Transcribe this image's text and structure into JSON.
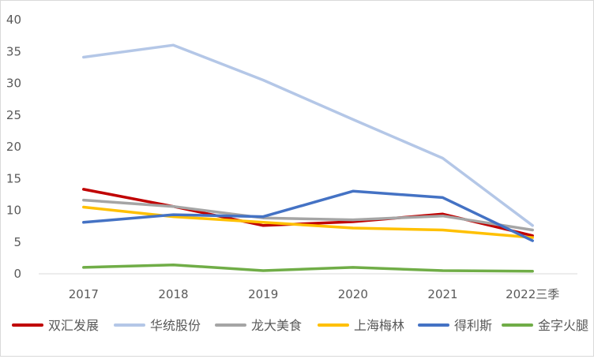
{
  "chart_data": {
    "type": "line",
    "title": "",
    "xlabel": "",
    "ylabel": "",
    "categories": [
      "2017",
      "2018",
      "2019",
      "2020",
      "2021",
      "2022三季"
    ],
    "ylim": [
      0,
      40
    ],
    "yticks": [
      "0",
      "5",
      "10",
      "15",
      "20",
      "25",
      "30",
      "35",
      "40"
    ],
    "grid": false,
    "legend_position": "bottom",
    "series": [
      {
        "name": "双汇发展",
        "color": "#c00000",
        "values": [
          13.3,
          10.6,
          7.6,
          8.2,
          9.4,
          6.0
        ]
      },
      {
        "name": "华统股份",
        "color": "#b4c7e7",
        "values": [
          34.1,
          36.0,
          30.5,
          24.3,
          18.2,
          7.6
        ]
      },
      {
        "name": "龙大美食",
        "color": "#a5a5a5",
        "values": [
          11.6,
          10.6,
          8.8,
          8.5,
          9.1,
          6.9
        ]
      },
      {
        "name": "上海梅林",
        "color": "#ffc000",
        "values": [
          10.5,
          9.0,
          8.1,
          7.2,
          6.9,
          5.7
        ]
      },
      {
        "name": "得利斯",
        "color": "#4472c4",
        "values": [
          8.1,
          9.3,
          9.0,
          13.0,
          12.0,
          5.2
        ]
      },
      {
        "name": "金字火腿",
        "color": "#70ad47",
        "values": [
          1.0,
          1.4,
          0.5,
          1.0,
          0.5,
          0.4
        ]
      }
    ]
  }
}
